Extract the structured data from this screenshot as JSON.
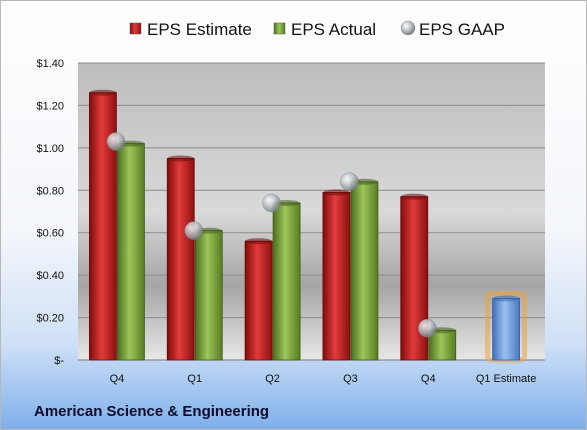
{
  "company_name": "American Science & Engineering",
  "colors": {
    "estimate": "#cc1f1f",
    "actual": "#77a032",
    "gaap": "#bfc3c8",
    "future_estimate": "#6f9fe0",
    "future_estimate_glow": "#f0a040"
  },
  "chart_data": {
    "type": "bar",
    "title": "",
    "xlabel": "",
    "ylabel": "",
    "categories": [
      "Q4",
      "Q1",
      "Q2",
      "Q3",
      "Q4",
      "Q1 Estimate"
    ],
    "y_ticks": [
      "$1.40",
      "$1.20",
      "$1.00",
      "$0.80",
      "$0.60",
      "$0.40",
      "$0.20",
      "$-"
    ],
    "ylim": [
      0,
      1.4
    ],
    "grid": true,
    "legend_position": "top",
    "series": [
      {
        "name": "EPS Estimate",
        "values": [
          1.26,
          0.95,
          0.56,
          0.79,
          0.77,
          null
        ]
      },
      {
        "name": "EPS Actual",
        "values": [
          1.02,
          0.61,
          0.74,
          0.84,
          0.14,
          null
        ]
      },
      {
        "name": "EPS GAAP",
        "values": [
          1.03,
          0.61,
          0.74,
          0.84,
          0.15,
          null
        ]
      }
    ],
    "future_estimate": {
      "category": "Q1 Estimate",
      "value": 0.29
    }
  }
}
